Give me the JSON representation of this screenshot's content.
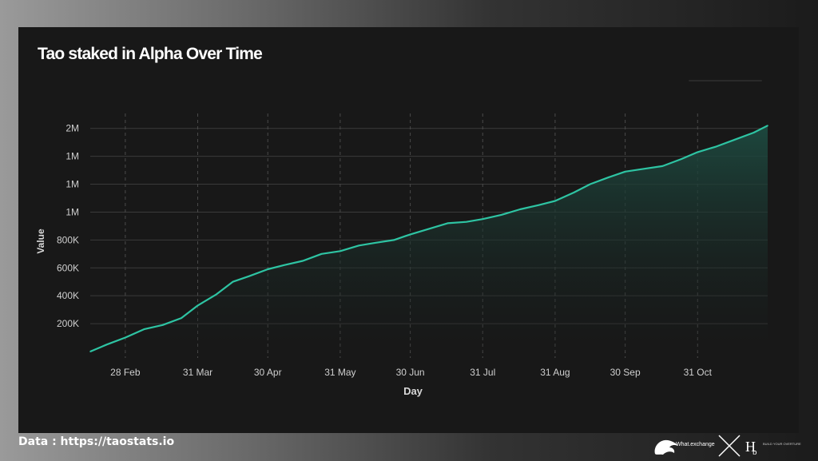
{
  "source": "Data : https://taostats.io",
  "brands": {
    "left_logo": "What.exchange",
    "right_logo_tagline": "BUILD YOUR OVERTURE"
  },
  "colors": {
    "line": "#2ec4a3",
    "area_top": "#1d4a40",
    "background": "#181818",
    "grid": "#3a3a3a"
  },
  "chart_data": {
    "type": "area",
    "title": "Tao staked in Alpha Over Time",
    "xlabel": "Day",
    "ylabel": "Value",
    "x_tick_labels": [
      "28 Feb",
      "31 Mar",
      "30 Apr",
      "31 May",
      "30 Jun",
      "31 Jul",
      "31 Aug",
      "30 Sep",
      "31 Oct"
    ],
    "y_tick_labels": [
      "200K",
      "400K",
      "600K",
      "800K",
      "1M",
      "1M",
      "1M",
      "2M"
    ],
    "y_tick_values": [
      200000,
      400000,
      600000,
      800000,
      1000000,
      1200000,
      1400000,
      1600000
    ],
    "ylim": [
      0,
      1650000
    ],
    "x": [
      "2025-02-13",
      "2025-02-20",
      "2025-02-28",
      "2025-03-08",
      "2025-03-16",
      "2025-03-24",
      "2025-03-31",
      "2025-04-08",
      "2025-04-15",
      "2025-04-22",
      "2025-04-30",
      "2025-05-07",
      "2025-05-15",
      "2025-05-23",
      "2025-05-31",
      "2025-06-08",
      "2025-06-15",
      "2025-06-23",
      "2025-06-30",
      "2025-07-08",
      "2025-07-16",
      "2025-07-24",
      "2025-07-31",
      "2025-08-08",
      "2025-08-16",
      "2025-08-24",
      "2025-08-31",
      "2025-09-08",
      "2025-09-15",
      "2025-09-23",
      "2025-09-30",
      "2025-10-08",
      "2025-10-16",
      "2025-10-24",
      "2025-10-31",
      "2025-11-08",
      "2025-11-16",
      "2025-11-24",
      "2025-11-30"
    ],
    "values": [
      0,
      50000,
      100000,
      160000,
      190000,
      240000,
      330000,
      410000,
      500000,
      540000,
      590000,
      620000,
      650000,
      700000,
      720000,
      760000,
      780000,
      800000,
      840000,
      880000,
      920000,
      930000,
      950000,
      980000,
      1020000,
      1050000,
      1080000,
      1140000,
      1200000,
      1250000,
      1290000,
      1310000,
      1330000,
      1380000,
      1430000,
      1470000,
      1520000,
      1570000,
      1620000
    ],
    "grid": true,
    "x_grid_style": "dashed",
    "legend": "none"
  }
}
